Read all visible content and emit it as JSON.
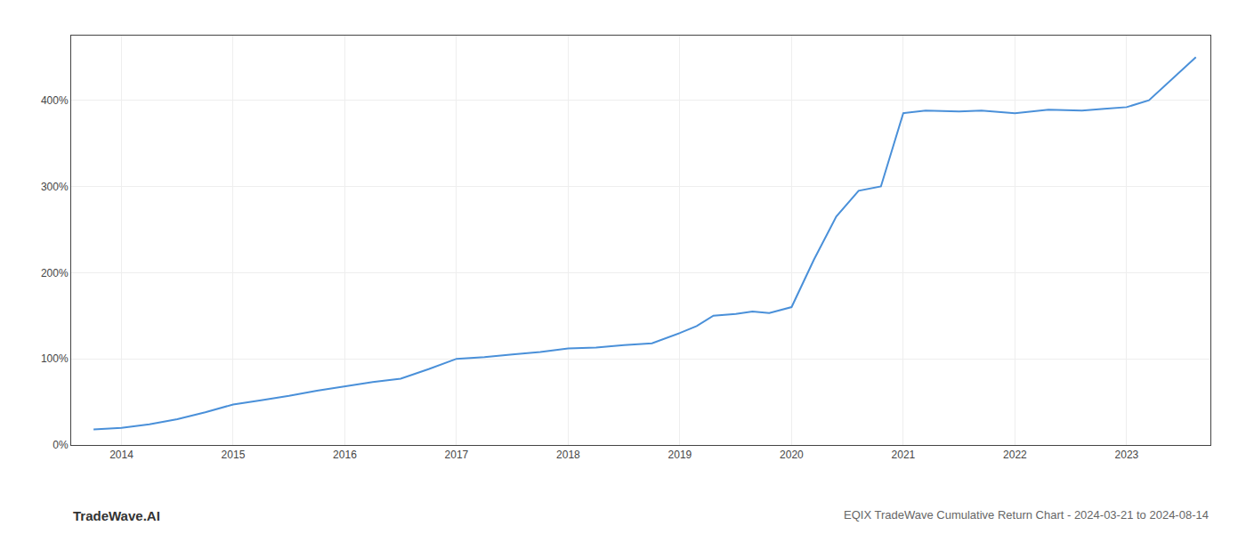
{
  "chart_data": {
    "type": "line",
    "annotations": [
      "TradeWave.AI",
      "EQIX TradeWave Cumulative Return Chart - 2024-03-21 to 2024-08-14"
    ],
    "x": [
      2013.75,
      2014.0,
      2014.25,
      2014.5,
      2014.75,
      2015.0,
      2015.25,
      2015.5,
      2015.75,
      2016.0,
      2016.25,
      2016.5,
      2016.75,
      2017.0,
      2017.25,
      2017.5,
      2017.75,
      2018.0,
      2018.25,
      2018.5,
      2018.75,
      2019.0,
      2019.15,
      2019.3,
      2019.5,
      2019.65,
      2019.8,
      2020.0,
      2020.2,
      2020.4,
      2020.6,
      2020.8,
      2021.0,
      2021.2,
      2021.5,
      2021.7,
      2022.0,
      2022.3,
      2022.6,
      2022.8,
      2023.0,
      2023.2,
      2023.5,
      2023.62
    ],
    "values": [
      18,
      20,
      24,
      30,
      38,
      47,
      52,
      57,
      63,
      68,
      73,
      77,
      88,
      100,
      102,
      105,
      108,
      112,
      113,
      116,
      118,
      130,
      138,
      150,
      152,
      155,
      153,
      160,
      215,
      265,
      295,
      300,
      385,
      388,
      387,
      388,
      385,
      389,
      388,
      390,
      392,
      400,
      435,
      450
    ],
    "color": "#4a90d9",
    "xlim": [
      2013.55,
      2023.75
    ],
    "xticks": [
      2014,
      2015,
      2016,
      2017,
      2018,
      2019,
      2020,
      2021,
      2022,
      2023
    ],
    "ylim": [
      0,
      475
    ],
    "yticks": [
      {
        "value": 0,
        "label": "0%"
      },
      {
        "value": 100,
        "label": "100%"
      },
      {
        "value": 200,
        "label": "200%"
      },
      {
        "value": 300,
        "label": "300%"
      },
      {
        "value": 400,
        "label": "400%"
      }
    ],
    "grid": true
  }
}
